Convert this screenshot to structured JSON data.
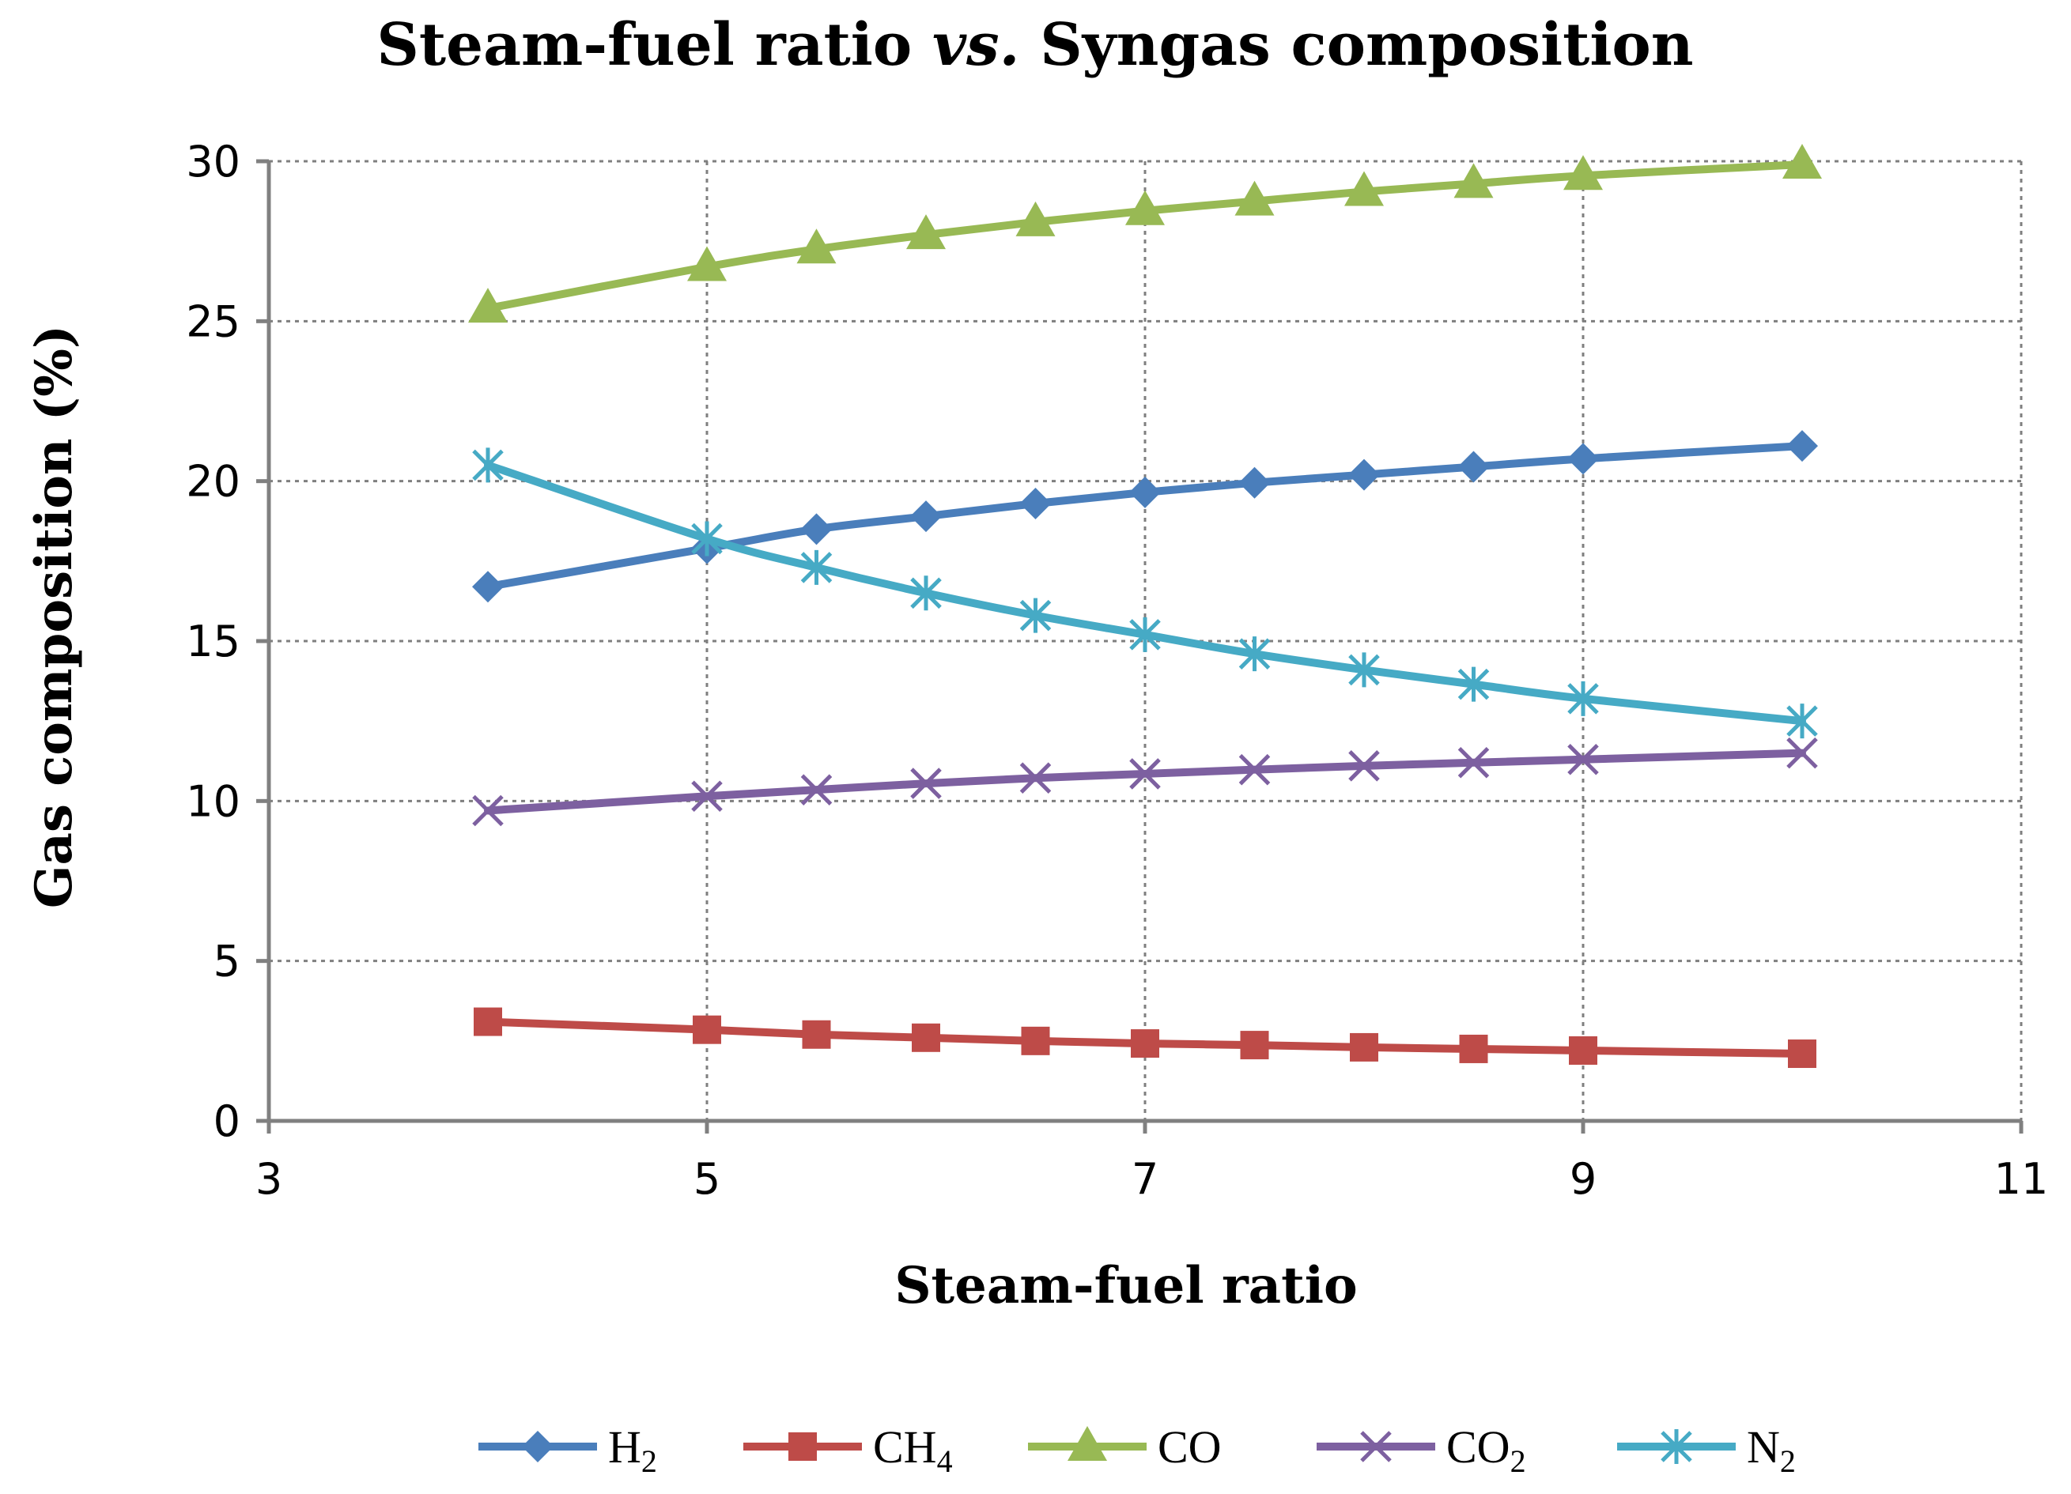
{
  "chart_data": {
    "type": "line",
    "title": "Steam-fuel ratio vs. Syngas composition",
    "title_parts": [
      "Steam-fuel ratio ",
      "vs.",
      " Syngas composition"
    ],
    "xlabel": "Steam-fuel ratio",
    "ylabel": "Gas composition (%)",
    "xlim": [
      3,
      11
    ],
    "ylim": [
      0,
      30
    ],
    "xticks": [
      3,
      5,
      7,
      9,
      11
    ],
    "yticks": [
      0,
      5,
      10,
      15,
      20,
      25,
      30
    ],
    "grid": true,
    "legend_position": "bottom",
    "x": [
      4,
      5,
      5.5,
      6,
      6.5,
      7,
      7.5,
      8,
      8.5,
      9,
      10
    ],
    "series": [
      {
        "name": "H2",
        "label_main": "H",
        "label_sub": "2",
        "color": "#4a7ebb",
        "marker": "diamond",
        "values": [
          16.7,
          17.9,
          18.5,
          18.9,
          19.3,
          19.65,
          19.95,
          20.2,
          20.45,
          20.7,
          21.1
        ]
      },
      {
        "name": "CH4",
        "label_main": "CH",
        "label_sub": "4",
        "color": "#be4b48",
        "marker": "square",
        "values": [
          3.1,
          2.85,
          2.7,
          2.6,
          2.5,
          2.42,
          2.37,
          2.3,
          2.25,
          2.2,
          2.1
        ]
      },
      {
        "name": "CO",
        "label_main": "CO",
        "label_sub": "",
        "color": "#98b954",
        "marker": "triangle",
        "values": [
          25.4,
          26.7,
          27.25,
          27.7,
          28.1,
          28.45,
          28.75,
          29.05,
          29.3,
          29.55,
          29.9
        ]
      },
      {
        "name": "CO2",
        "label_main": "CO",
        "label_sub": "2",
        "color": "#7d60a0",
        "marker": "x",
        "values": [
          9.7,
          10.15,
          10.35,
          10.55,
          10.72,
          10.85,
          10.98,
          11.1,
          11.2,
          11.3,
          11.5
        ]
      },
      {
        "name": "N2",
        "label_main": "N",
        "label_sub": "2",
        "color": "#46aac5",
        "marker": "star",
        "values": [
          20.5,
          18.2,
          17.3,
          16.5,
          15.8,
          15.2,
          14.6,
          14.1,
          13.65,
          13.2,
          12.5
        ]
      }
    ]
  }
}
